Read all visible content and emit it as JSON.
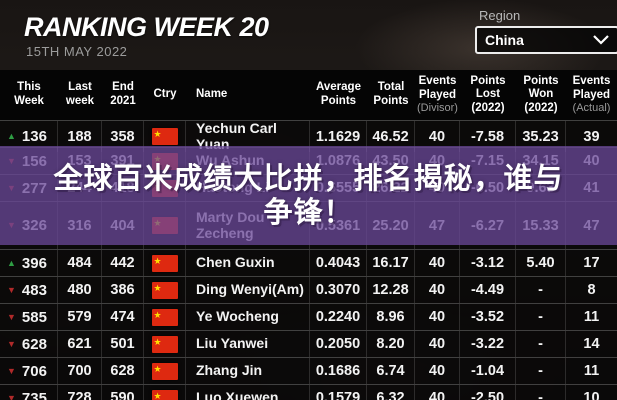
{
  "header": {
    "title": "RANKING WEEK 20",
    "date": "15TH MAY 2022",
    "region_label": "Region",
    "region_value": "China"
  },
  "banner": {
    "line1": "全球百米成绩大比拼，排名揭秘，谁与",
    "line2": "争锋！",
    "overlay_rgba": "rgba(106,72,152,0.76)"
  },
  "table": {
    "columns": [
      {
        "id": "this_week",
        "lines": [
          "This",
          "Week"
        ]
      },
      {
        "id": "last_week",
        "lines": [
          "Last",
          "week"
        ]
      },
      {
        "id": "end_2021",
        "lines": [
          "End",
          "2021"
        ]
      },
      {
        "id": "ctry",
        "lines": [
          "Ctry"
        ]
      },
      {
        "id": "name",
        "lines": [
          "Name"
        ]
      },
      {
        "id": "average_points",
        "lines": [
          "Average",
          "Points"
        ]
      },
      {
        "id": "total_points",
        "lines": [
          "Total",
          "Points"
        ]
      },
      {
        "id": "events_played_divisor",
        "lines": [
          "Events",
          "Played",
          "(Divisor)"
        ],
        "muted_line": 2
      },
      {
        "id": "points_lost",
        "lines": [
          "Points",
          "Lost",
          "(2022)"
        ]
      },
      {
        "id": "points_won",
        "lines": [
          "Points",
          "Won",
          "(2022)"
        ]
      },
      {
        "id": "events_played_actual",
        "lines": [
          "Events",
          "Played",
          "(Actual)"
        ],
        "muted_line": 2
      }
    ],
    "trend_colors": {
      "up": "#2f9e44",
      "down": "#b02a2a"
    },
    "flag": {
      "bg": "#de2910",
      "star": "★",
      "country": "China"
    },
    "rows": [
      {
        "trend": "up",
        "this_week": "136",
        "last_week": "188",
        "end_2021": "358",
        "name": "Yechun Carl Yuan",
        "average_points": "1.1629",
        "total_points": "46.52",
        "events_played_divisor": "40",
        "points_lost": "-7.58",
        "points_won": "35.23",
        "events_played_actual": "39"
      },
      {
        "trend": "down",
        "this_week": "156",
        "last_week": "153",
        "end_2021": "391",
        "name": "Wu Ashun",
        "average_points": "1.0876",
        "total_points": "43.50",
        "events_played_divisor": "40",
        "points_lost": "-7.15",
        "points_won": "34.15",
        "events_played_actual": "40"
      },
      {
        "trend": "down",
        "this_week": "277",
        "last_week": "244",
        "end_2021": "418",
        "name": "Haotong Li",
        "average_points": "0.6555",
        "total_points": "26.22",
        "events_played_divisor": "40",
        "points_lost": "-6.50",
        "points_won": "9.63",
        "events_played_actual": "41"
      },
      {
        "trend": "down",
        "this_week": "326",
        "last_week": "316",
        "end_2021": "404",
        "name": "Marty Dou Zecheng",
        "average_points": "0.5361",
        "total_points": "25.20",
        "events_played_divisor": "47",
        "points_lost": "-6.27",
        "points_won": "15.33",
        "events_played_actual": "47"
      },
      {
        "trend": "up",
        "this_week": "396",
        "last_week": "484",
        "end_2021": "442",
        "name": "Chen Guxin",
        "average_points": "0.4043",
        "total_points": "16.17",
        "events_played_divisor": "40",
        "points_lost": "-3.12",
        "points_won": "5.40",
        "events_played_actual": "17"
      },
      {
        "trend": "down",
        "this_week": "483",
        "last_week": "480",
        "end_2021": "386",
        "name": "Ding Wenyi(Am)",
        "average_points": "0.3070",
        "total_points": "12.28",
        "events_played_divisor": "40",
        "points_lost": "-4.49",
        "points_won": "-",
        "events_played_actual": "8"
      },
      {
        "trend": "down",
        "this_week": "585",
        "last_week": "579",
        "end_2021": "474",
        "name": "Ye Wocheng",
        "average_points": "0.2240",
        "total_points": "8.96",
        "events_played_divisor": "40",
        "points_lost": "-3.52",
        "points_won": "-",
        "events_played_actual": "11"
      },
      {
        "trend": "down",
        "this_week": "628",
        "last_week": "621",
        "end_2021": "501",
        "name": "Liu Yanwei",
        "average_points": "0.2050",
        "total_points": "8.20",
        "events_played_divisor": "40",
        "points_lost": "-3.22",
        "points_won": "-",
        "events_played_actual": "14"
      },
      {
        "trend": "down",
        "this_week": "706",
        "last_week": "700",
        "end_2021": "628",
        "name": "Zhang Jin",
        "average_points": "0.1686",
        "total_points": "6.74",
        "events_played_divisor": "40",
        "points_lost": "-1.04",
        "points_won": "-",
        "events_played_actual": "11"
      },
      {
        "trend": "down",
        "this_week": "735",
        "last_week": "728",
        "end_2021": "590",
        "name": "Luo Xuewen",
        "average_points": "0.1579",
        "total_points": "6.32",
        "events_played_divisor": "40",
        "points_lost": "-2.50",
        "points_won": "-",
        "events_played_actual": "10"
      }
    ]
  }
}
